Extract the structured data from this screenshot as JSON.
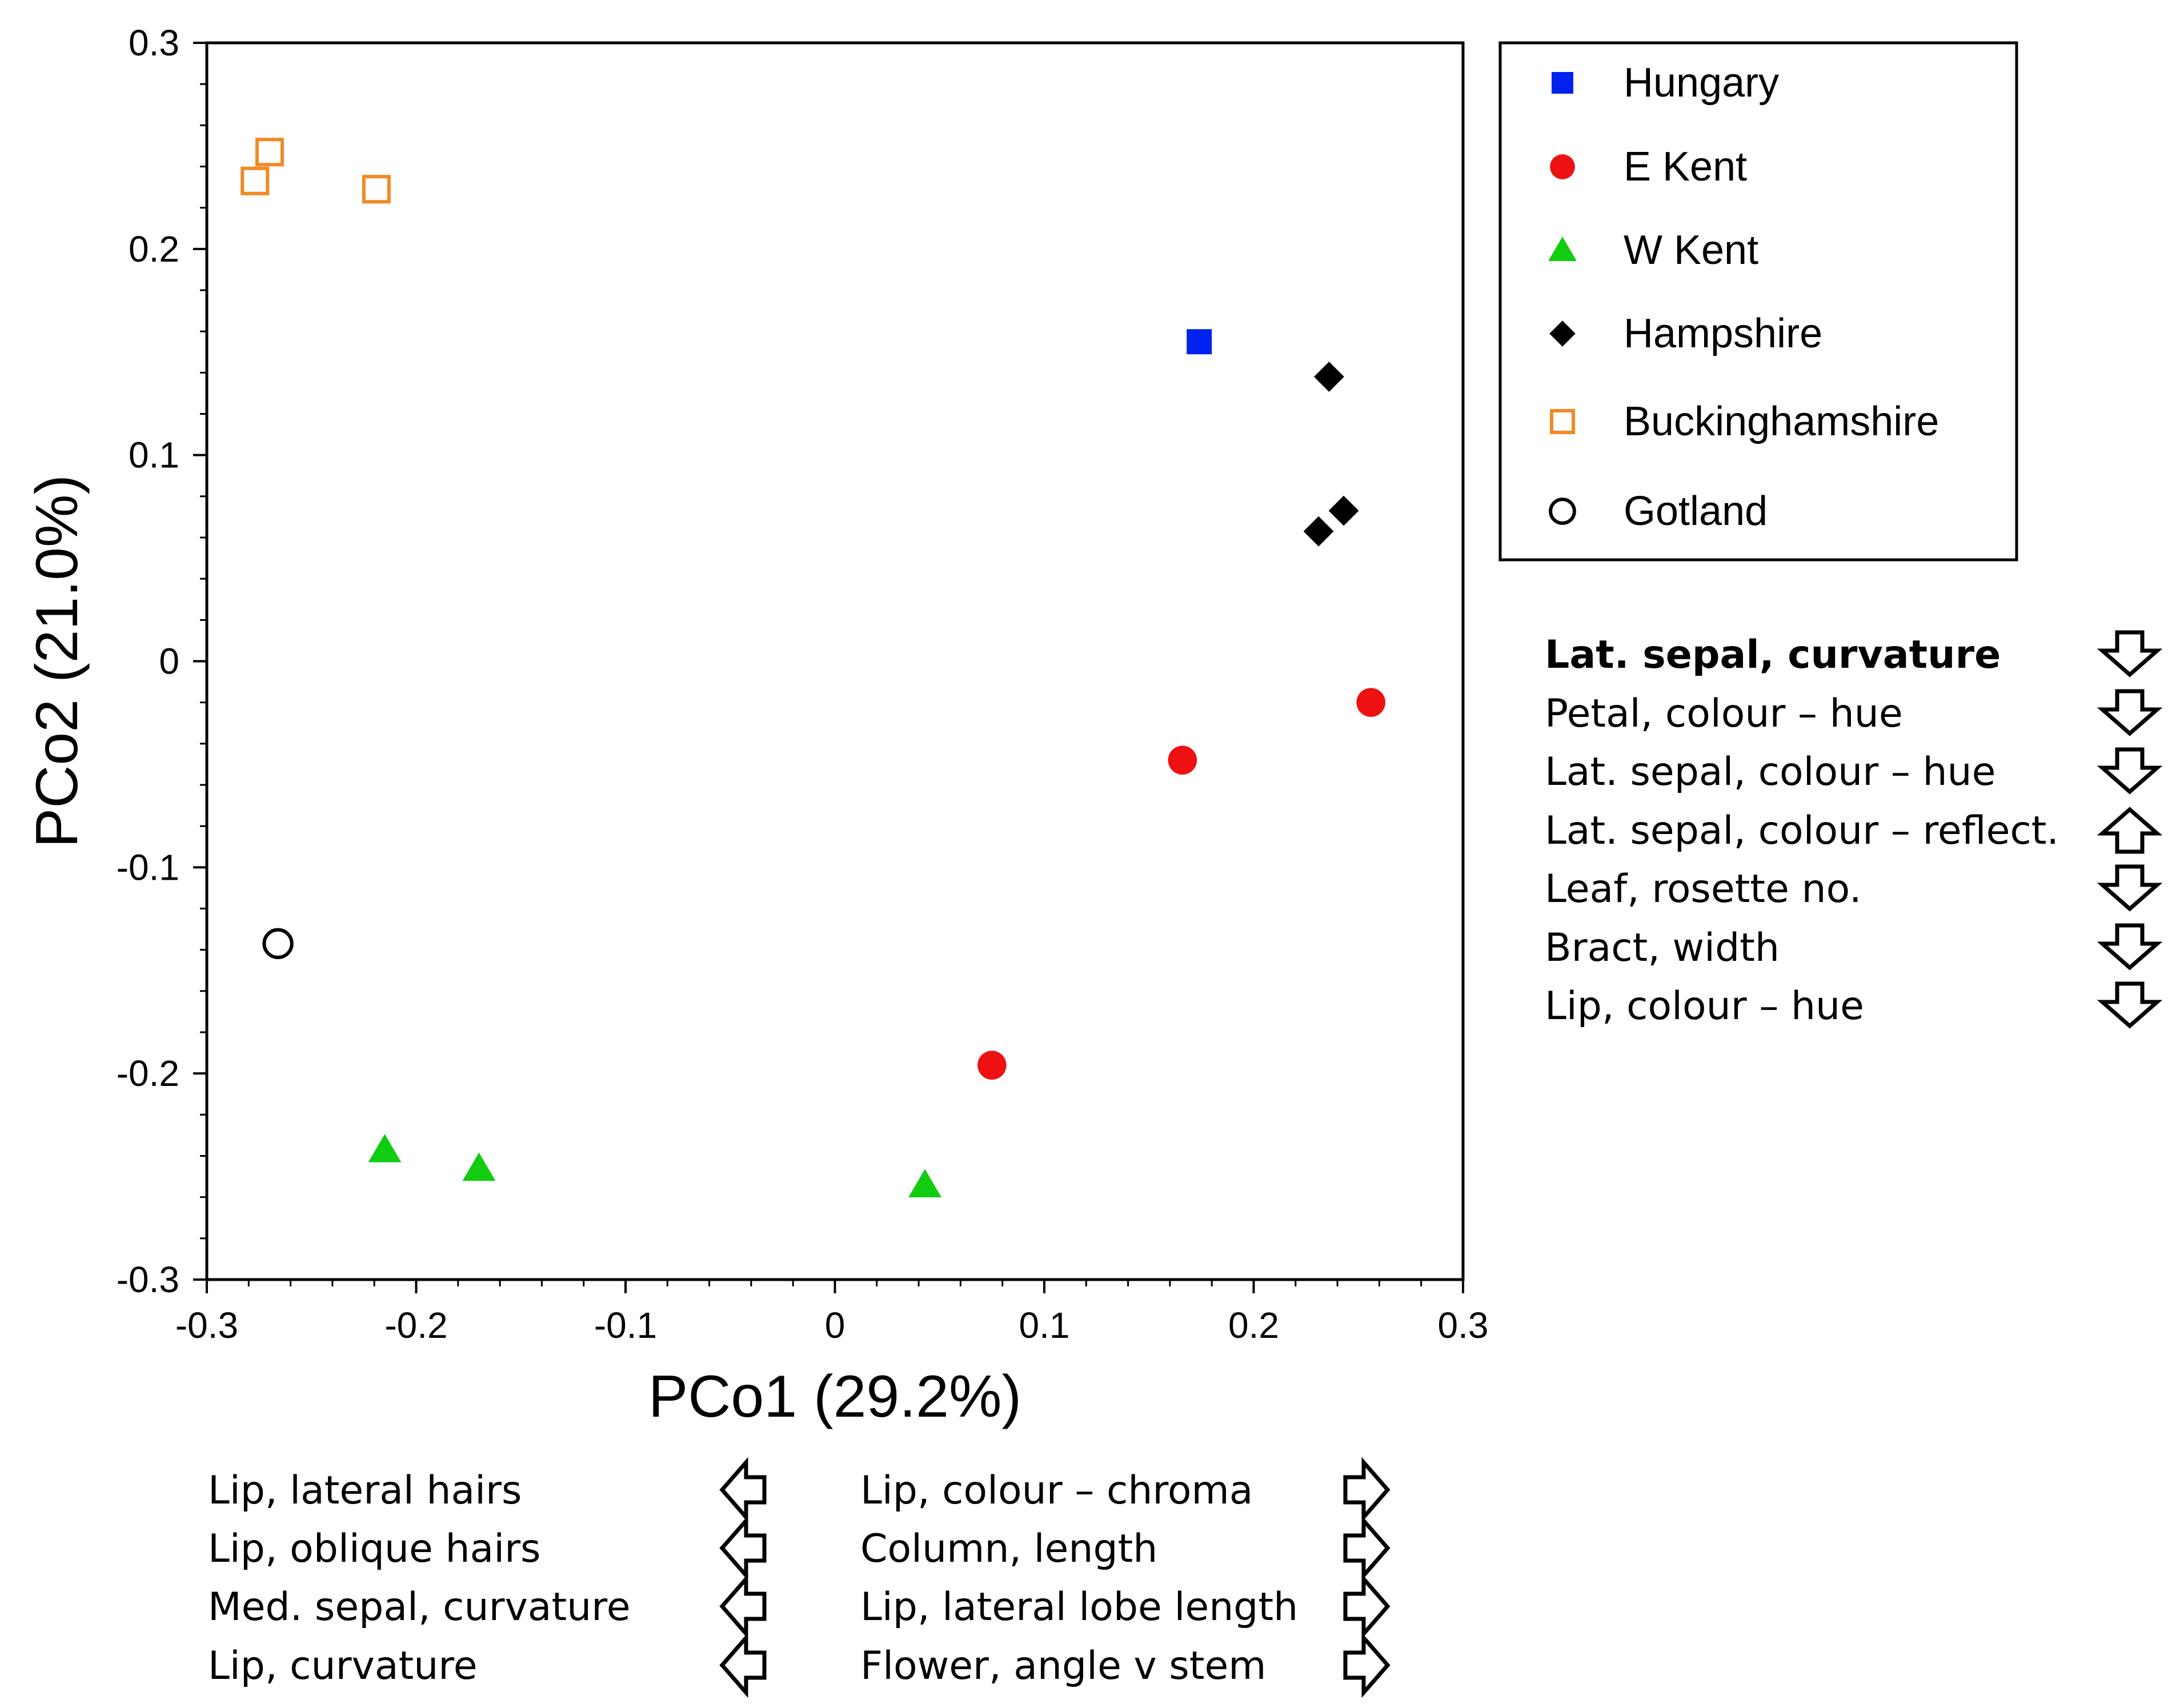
{
  "chart_data": {
    "type": "scatter",
    "xlabel": "PCo1 (29.2%)",
    "ylabel": "PCo2 (21.0%)",
    "xlim": [
      -0.3,
      0.3
    ],
    "ylim": [
      -0.3,
      0.3
    ],
    "x_ticks": [
      "-0.3",
      "-0.2",
      "-0.1",
      "0",
      "0.1",
      "0.2",
      "0.3"
    ],
    "y_ticks": [
      "-0.3",
      "-0.2",
      "-0.1",
      "0",
      "0.1",
      "0.2",
      "0.3"
    ],
    "legend_position": "right",
    "series": [
      {
        "name": "Hungary",
        "marker": "square-filled",
        "color": "#0022ee",
        "points": [
          {
            "x": 0.174,
            "y": 0.155
          }
        ]
      },
      {
        "name": "E Kent",
        "marker": "circle-filled",
        "color": "#ee1111",
        "points": [
          {
            "x": 0.256,
            "y": -0.02
          },
          {
            "x": 0.166,
            "y": -0.048
          },
          {
            "x": 0.075,
            "y": -0.196
          }
        ]
      },
      {
        "name": "W Kent",
        "marker": "triangle-filled",
        "color": "#11cc11",
        "points": [
          {
            "x": -0.215,
            "y": -0.237
          },
          {
            "x": -0.17,
            "y": -0.246
          },
          {
            "x": 0.043,
            "y": -0.254
          }
        ]
      },
      {
        "name": "Hampshire",
        "marker": "diamond-filled",
        "color": "#000000",
        "points": [
          {
            "x": 0.236,
            "y": 0.138
          },
          {
            "x": 0.243,
            "y": 0.073
          },
          {
            "x": 0.231,
            "y": 0.063
          }
        ]
      },
      {
        "name": "Buckinghamshire",
        "marker": "square-open",
        "color": "#f08a24",
        "points": [
          {
            "x": -0.27,
            "y": 0.247
          },
          {
            "x": -0.277,
            "y": 0.233
          },
          {
            "x": -0.219,
            "y": 0.229
          }
        ]
      },
      {
        "name": "Gotland",
        "marker": "circle-open",
        "color": "#000000",
        "points": [
          {
            "x": -0.266,
            "y": -0.137
          }
        ]
      }
    ],
    "pco2_traits": [
      {
        "label": "Lat. sepal, curvature",
        "direction": "down",
        "bold": true
      },
      {
        "label": "Petal, colour – hue",
        "direction": "down",
        "bold": false
      },
      {
        "label": "Lat. sepal, colour – hue",
        "direction": "down",
        "bold": false
      },
      {
        "label": "Lat. sepal, colour – reflect.",
        "direction": "up",
        "bold": false
      },
      {
        "label": "Leaf, rosette no.",
        "direction": "down",
        "bold": false
      },
      {
        "label": "Bract, width",
        "direction": "down",
        "bold": false
      },
      {
        "label": "Lip, colour – hue",
        "direction": "down",
        "bold": false
      }
    ],
    "pco1_traits_negative": [
      {
        "label": "Lip, lateral hairs",
        "direction": "left"
      },
      {
        "label": "Lip, oblique hairs",
        "direction": "left"
      },
      {
        "label": "Med. sepal, curvature",
        "direction": "left"
      },
      {
        "label": "Lip, curvature",
        "direction": "left"
      }
    ],
    "pco1_traits_positive": [
      {
        "label": "Lip, colour – chroma",
        "direction": "right"
      },
      {
        "label": "Column, length",
        "direction": "right"
      },
      {
        "label": "Lip, lateral lobe length",
        "direction": "right"
      },
      {
        "label": "Flower, angle v stem",
        "direction": "right"
      }
    ]
  }
}
